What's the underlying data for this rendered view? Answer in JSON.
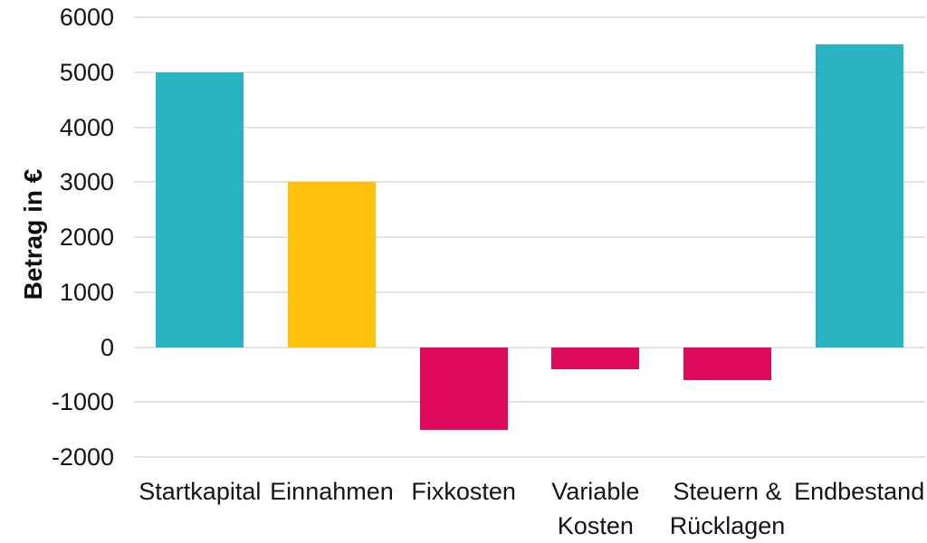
{
  "chart_data": {
    "type": "bar",
    "title": "",
    "ylabel": "Betrag in €",
    "xlabel": "",
    "categories": [
      "Startkapital",
      "Einnahmen",
      "Fixkosten",
      "Variable Kosten",
      "Steuern & Rücklagen",
      "Endbestand"
    ],
    "category_label_lines": [
      [
        "Startkapital"
      ],
      [
        "Einnahmen"
      ],
      [
        "Fixkosten"
      ],
      [
        "Variable",
        "Kosten"
      ],
      [
        "Steuern &",
        "Rücklagen"
      ],
      [
        "Endbestand"
      ]
    ],
    "values": [
      5000,
      3000,
      -1500,
      -400,
      -600,
      5500
    ],
    "bar_colors": [
      "#2AB3C3",
      "#FFC00E",
      "#DD0A5E",
      "#DD0A5E",
      "#DD0A5E",
      "#2AB3C3"
    ],
    "ylim": [
      -2000,
      6000
    ],
    "yticks": [
      6000,
      5000,
      4000,
      3000,
      2000,
      1000,
      0,
      -1000,
      -2000
    ],
    "grid": true,
    "legend_position": "none",
    "colors": {
      "teal": "#2AB3C3",
      "amber": "#FFC00E",
      "pink": "#DD0A5E",
      "gridline": "#e2e2e2",
      "text": "#141414",
      "background": "#ffffff"
    }
  }
}
